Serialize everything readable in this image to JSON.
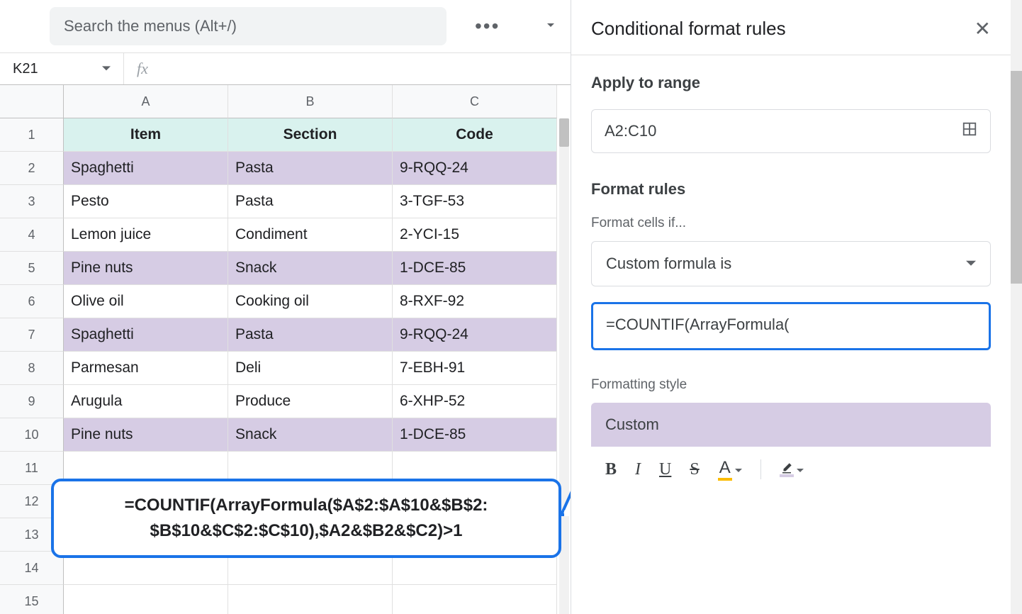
{
  "search": {
    "placeholder": "Search the menus (Alt+/)"
  },
  "nameBox": {
    "value": "K21"
  },
  "columns": [
    "A",
    "B",
    "C"
  ],
  "rowNumbers": [
    1,
    2,
    3,
    4,
    5,
    6,
    7,
    8,
    9,
    10,
    11,
    12,
    13,
    14,
    15
  ],
  "headerRow": {
    "bg": "#d9ead3_unused",
    "cells": [
      "Item",
      "Section",
      "Code"
    ]
  },
  "headerBg": "#d9f2ee",
  "highlightBg": "#d6cce4",
  "rows": [
    {
      "hl": true,
      "cells": [
        "Spaghetti",
        "Pasta",
        "9-RQQ-24"
      ]
    },
    {
      "hl": false,
      "cells": [
        "Pesto",
        "Pasta",
        "3-TGF-53"
      ]
    },
    {
      "hl": false,
      "cells": [
        "Lemon juice",
        "Condiment",
        "2-YCI-15"
      ]
    },
    {
      "hl": true,
      "cells": [
        "Pine nuts",
        "Snack",
        "1-DCE-85"
      ]
    },
    {
      "hl": false,
      "cells": [
        "Olive oil",
        "Cooking oil",
        "8-RXF-92"
      ]
    },
    {
      "hl": true,
      "cells": [
        "Spaghetti",
        "Pasta",
        "9-RQQ-24"
      ]
    },
    {
      "hl": false,
      "cells": [
        "Parmesan",
        "Deli",
        "7-EBH-91"
      ]
    },
    {
      "hl": false,
      "cells": [
        "Arugula",
        "Produce",
        "6-XHP-52"
      ]
    },
    {
      "hl": true,
      "cells": [
        "Pine nuts",
        "Snack",
        "1-DCE-85"
      ]
    }
  ],
  "callout": {
    "line1": "=COUNTIF(ArrayFormula($A$2:$A$10&$B$2:",
    "line2": "$B$10&$C$2:$C$10),$A2&$B2&$C2)>1",
    "borderColor": "#1a73e8"
  },
  "panel": {
    "title": "Conditional format rules",
    "applyToRangeLabel": "Apply to range",
    "range": "A2:C10",
    "formatRulesLabel": "Format rules",
    "formatCellsIfLabel": "Format cells if...",
    "condition": "Custom formula is",
    "formula": "=COUNTIF(ArrayFormula(",
    "formattingStyleLabel": "Formatting style",
    "stylePreview": "Custom",
    "previewBg": "#d6cce4"
  }
}
